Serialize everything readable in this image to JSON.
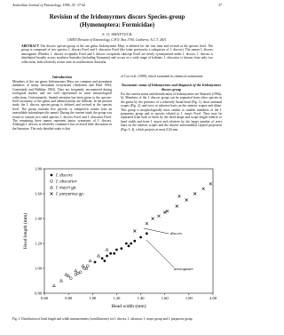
{
  "header": {
    "journal": "Australian Journal of Entomology, 1996, 35: 37-42",
    "page": "37"
  },
  "title": "Revision of the Iridomyrmex discors Species-group",
  "subtitle": "(Hymenoptera: Formicidae)",
  "author": "S. O. SHATTUCK",
  "affiliation": "CSIRO Division of Entomology, G.P.O. Box 1700, Canberra, A.C.T. 2601.",
  "abstract": {
    "label": "ABSTRACT",
    "text": "The discors species-group of the ant genus Iridomyrmex Mayr is defined for the first time and revised at the species level. The group is composed of two species, I. discors Forel and I. obscurior Forel (the latter previously a subspecies of I. discors). The names I. discors aeneogaster Wheeler, I. discors occipitalis Forel and I. discors occipitalis rubiceps Forel are newly synonymised under I. discors. I. discors is distributed broadly across southern Australia (including Tasmania) and occurs in a wide range of habitats. I. obscurior is known from only two collections, both relatively recent ones in southwestern Australia."
  },
  "introduction": {
    "heading": "Introduction",
    "text": "Members of the ant genus Iridomyrmex Mayr are common and prominent members of many Australian ecosystems (Andersen and Patel 1994; Greenslade and Halliday 1983). They are frequently encountered during ecological studies and are well represented in most entomological collections. Unfortunately, limited attention has been given to the species-level taxonomy of the genus and identifications are difficult. In the present study the I. discors species-group is defined and revised at the species level. The group contains five specific or subspecific names (one an unavailable infrasubspecific name). During the current study the group was found to contain two valid species, I. discors Forel and I. obscurior Forel. The remaining three names represent junior synonyms of I. discors. Although I. discors is relatively common it has received little discussion in the literature. The only detailed study is that"
  },
  "continuation": "of Cox et al. (1989), which examined its chemical constituents.",
  "section": {
    "heading": "Taxonomic status of Iridomyrmex and diagnosis of the Iridomyrmex discors group",
    "text": "For the current status and identification of Iridomyrmex see Shattuck (1992a, b). Members of the I. discors group can be separated from other species in the genus by the presence of a relatively broad head (Fig. 1), short antennal scapes (Fig. 2), and erect or suberect hairs on the anterior scapes and tibiae. This group is morphologically most similar to smaller members of the I. purpureus group and to species related to I. mayri Forel. They may be separated from both of these by the head shape and scape length relative to head width and from I. mayri and relatives by the larger number of erect hairs on the anterior scapes and the shorter anteromedial clypeal projection (Figs 3, 4), which projects at most 0.02 mm"
  },
  "figure": {
    "type": "scatter",
    "xlabel": "Head width (mm)",
    "ylabel": "Head length (mm)",
    "xlim": [
      0.6,
      2.0
    ],
    "ylim": [
      0.8,
      1.8
    ],
    "xticks": [
      {
        "value": 0.6,
        "label": "0.60"
      },
      {
        "value": 0.8,
        "label": "0.80"
      },
      {
        "value": 1.0,
        "label": "1.00"
      },
      {
        "value": 1.2,
        "label": "1.20"
      },
      {
        "value": 1.4,
        "label": "1.40"
      },
      {
        "value": 1.6,
        "label": "1.60"
      },
      {
        "value": 1.8,
        "label": "1.80"
      },
      {
        "value": 2.0,
        "label": "2.00"
      }
    ],
    "yticks": [
      {
        "value": 0.8,
        "label": "0.80"
      },
      {
        "value": 1.0,
        "label": "1.00"
      },
      {
        "value": 1.2,
        "label": "1.20"
      },
      {
        "value": 1.4,
        "label": "1.40"
      },
      {
        "value": 1.6,
        "label": "1.60"
      },
      {
        "value": 1.8,
        "label": "1.80"
      }
    ],
    "series": [
      {
        "name": "I. discors",
        "marker": "filled-circle",
        "color": "#111",
        "x": [
          1.02,
          1.08,
          1.12,
          1.15,
          1.2,
          1.24,
          1.28,
          1.3,
          1.35,
          1.4,
          1.45,
          1.18,
          1.1,
          1.32
        ],
        "y": [
          1.05,
          1.08,
          1.1,
          1.12,
          1.15,
          1.16,
          1.2,
          1.18,
          1.22,
          1.25,
          1.28,
          1.12,
          1.06,
          1.2
        ]
      },
      {
        "name": "I. obscurior",
        "marker": "open-circle",
        "color": "#111",
        "x": [
          0.82,
          0.86,
          0.9,
          0.93,
          0.96,
          0.88
        ],
        "y": [
          0.92,
          0.95,
          0.97,
          1.0,
          1.02,
          0.96
        ]
      },
      {
        "name": "I. mayri gp.",
        "marker": "triangle",
        "color": "#111",
        "x": [
          0.68,
          0.74,
          0.8,
          0.86,
          0.92,
          0.98,
          1.05,
          1.12,
          0.78,
          0.95
        ],
        "y": [
          0.86,
          0.9,
          0.94,
          0.98,
          1.02,
          1.06,
          1.1,
          1.15,
          0.95,
          1.0
        ]
      },
      {
        "name": "I. purpureus gp.",
        "marker": "cross",
        "color": "#111",
        "x": [
          1.35,
          1.45,
          1.55,
          1.62,
          1.7,
          1.78,
          1.85,
          1.92,
          1.98,
          1.6,
          1.5,
          1.72
        ],
        "y": [
          1.3,
          1.36,
          1.42,
          1.46,
          1.5,
          1.55,
          1.6,
          1.64,
          1.68,
          1.45,
          1.4,
          1.58
        ]
      }
    ],
    "annotations": [
      "discors",
      "aeneogaster"
    ],
    "caption": "Fig. 1. Distribution of head length and width measurements (in millimetres) for I. discors, I. obscurior, I. mayri group and I. purpureus group."
  }
}
